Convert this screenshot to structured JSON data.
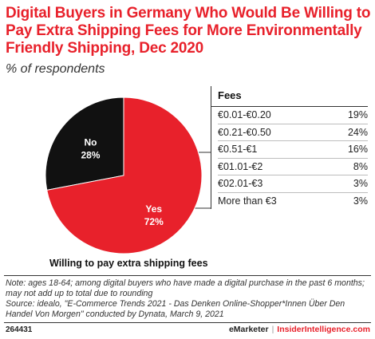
{
  "header": {
    "title": "Digital Buyers in Germany Who Would Be Willing to Pay Extra Shipping Fees for More Environmentally Friendly Shipping, Dec 2020",
    "subtitle": "% of respondents"
  },
  "chart_data": {
    "type": "pie",
    "slices": [
      {
        "label": "Yes",
        "value": 72,
        "value_label": "72%",
        "color": "#e8212b",
        "text_color": "#ffffff"
      },
      {
        "label": "No",
        "value": 28,
        "value_label": "28%",
        "color": "#111111",
        "text_color": "#ffffff"
      }
    ],
    "caption": "Willing to pay extra shipping fees"
  },
  "fees_table": {
    "header": "Fees",
    "rows": [
      {
        "fee": "€0.01-€0.20",
        "value": "19%"
      },
      {
        "fee": "€0.21-€0.50",
        "value": "24%"
      },
      {
        "fee": "€0.51-€1",
        "value": "16%"
      },
      {
        "fee": "€01.01-€2",
        "value": "8%"
      },
      {
        "fee": "€02.01-€3",
        "value": "3%"
      },
      {
        "fee": "More than €3",
        "value": "3%"
      }
    ]
  },
  "notes": {
    "note": "Note: ages 18-64; among digital buyers who have made a digital purchase in the past 6 months; may not add up to total due to rounding",
    "source": "Source: idealo, \"E-Commerce Trends 2021 - Das Denken Online-Shopper*Innen Über Den Handel Von Morgen\" conducted by Dynata, March 9, 2021"
  },
  "footer": {
    "chart_id": "264431",
    "brand": "eMarketer",
    "separator": "|",
    "site": "InsiderIntelligence.com"
  }
}
